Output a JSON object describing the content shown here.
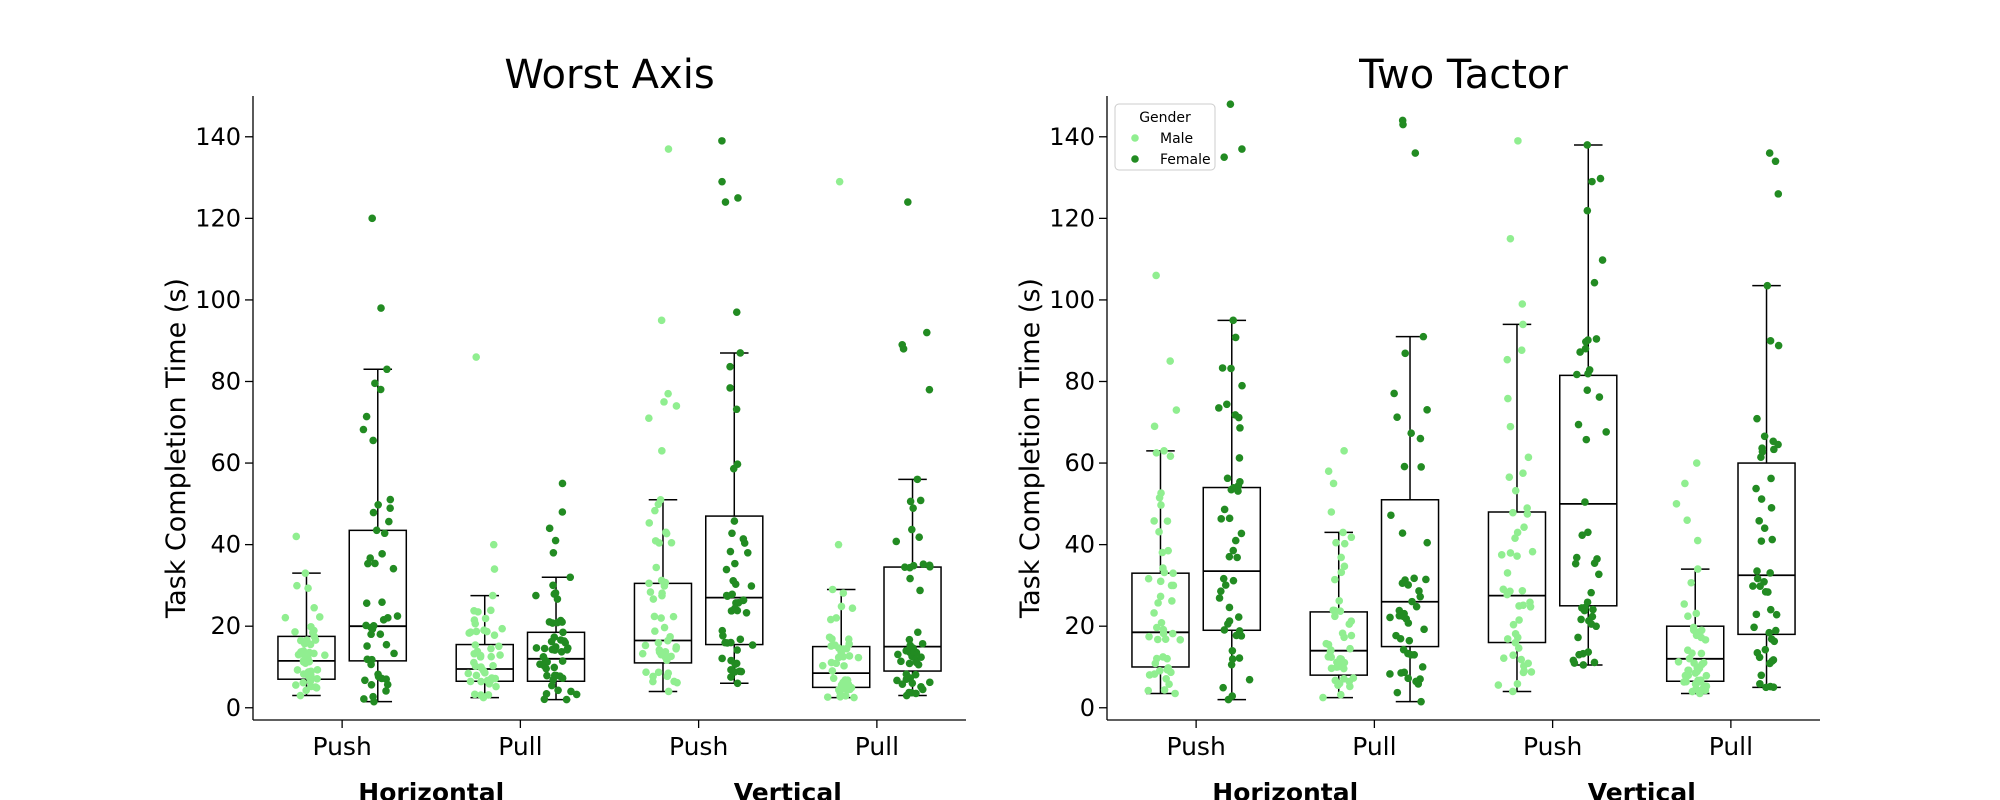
{
  "colors": {
    "male": "#90ee90",
    "female": "#228b22",
    "box": "#000000"
  },
  "chart_data": [
    {
      "type": "box",
      "title": "Worst Axis",
      "ylabel": "Task Completion Time (s)",
      "ylim": [
        -3,
        150
      ],
      "yticks": [
        0,
        20,
        40,
        60,
        80,
        100,
        120,
        140
      ],
      "categories": [
        "Push",
        "Pull",
        "Push",
        "Pull"
      ],
      "groups": [
        {
          "label": "Horizontal",
          "categories": [
            0,
            1
          ]
        },
        {
          "label": "Vertical",
          "categories": [
            2,
            3
          ]
        }
      ],
      "legend": null,
      "series": [
        {
          "name": "Male",
          "boxes": [
            {
              "whisker_low": 3,
              "q1": 7,
              "median": 11.5,
              "q3": 17.5,
              "whisker_high": 33,
              "outliers": [
                42
              ]
            },
            {
              "whisker_low": 2.5,
              "q1": 6.5,
              "median": 9.5,
              "q3": 15.5,
              "whisker_high": 27.5,
              "outliers": [
                34,
                40,
                86
              ]
            },
            {
              "whisker_low": 4,
              "q1": 11,
              "median": 16.5,
              "q3": 30.5,
              "whisker_high": 51,
              "outliers": [
                63,
                71,
                74,
                75,
                77,
                95,
                137
              ]
            },
            {
              "whisker_low": 2.5,
              "q1": 5,
              "median": 8.5,
              "q3": 15,
              "whisker_high": 29,
              "outliers": [
                40,
                129
              ]
            }
          ]
        },
        {
          "name": "Female",
          "boxes": [
            {
              "whisker_low": 1.5,
              "q1": 11.5,
              "median": 20,
              "q3": 43.5,
              "whisker_high": 83,
              "outliers": [
                98,
                120
              ]
            },
            {
              "whisker_low": 2,
              "q1": 6.5,
              "median": 12,
              "q3": 18.5,
              "whisker_high": 32,
              "outliers": [
                38,
                41,
                44,
                48,
                55
              ]
            },
            {
              "whisker_low": 6,
              "q1": 15.5,
              "median": 27,
              "q3": 47,
              "whisker_high": 87,
              "outliers": [
                97,
                124,
                125,
                129,
                139
              ]
            },
            {
              "whisker_low": 3,
              "q1": 9,
              "median": 15,
              "q3": 34.5,
              "whisker_high": 56,
              "outliers": [
                78,
                88,
                89,
                92,
                124
              ]
            }
          ]
        }
      ]
    },
    {
      "type": "box",
      "title": "Two Tactor",
      "ylabel": "Task Completion Time (s)",
      "ylim": [
        -3,
        150
      ],
      "yticks": [
        0,
        20,
        40,
        60,
        80,
        100,
        120,
        140
      ],
      "categories": [
        "Push",
        "Pull",
        "Push",
        "Pull"
      ],
      "groups": [
        {
          "label": "Horizontal",
          "categories": [
            0,
            1
          ]
        },
        {
          "label": "Vertical",
          "categories": [
            2,
            3
          ]
        }
      ],
      "legend": {
        "title": "Gender",
        "entries": [
          "Male",
          "Female"
        ],
        "placement": "top-left"
      },
      "series": [
        {
          "name": "Male",
          "boxes": [
            {
              "whisker_low": 3.5,
              "q1": 10,
              "median": 18.5,
              "q3": 33,
              "whisker_high": 63,
              "outliers": [
                69,
                73,
                85,
                106
              ]
            },
            {
              "whisker_low": 2.5,
              "q1": 8,
              "median": 14,
              "q3": 23.5,
              "whisker_high": 43,
              "outliers": [
                48,
                55,
                58,
                63
              ]
            },
            {
              "whisker_low": 4,
              "q1": 16,
              "median": 27.5,
              "q3": 48,
              "whisker_high": 94,
              "outliers": [
                99,
                115,
                139
              ]
            },
            {
              "whisker_low": 3.5,
              "q1": 6.5,
              "median": 12,
              "q3": 20,
              "whisker_high": 34,
              "outliers": [
                41,
                46,
                50,
                55,
                60
              ]
            }
          ]
        },
        {
          "name": "Female",
          "boxes": [
            {
              "whisker_low": 2,
              "q1": 19,
              "median": 33.5,
              "q3": 54,
              "whisker_high": 95,
              "outliers": [
                135,
                137,
                148
              ]
            },
            {
              "whisker_low": 1.5,
              "q1": 15,
              "median": 26,
              "q3": 51,
              "whisker_high": 91,
              "outliers": [
                136,
                143,
                144
              ]
            },
            {
              "whisker_low": 10.5,
              "q1": 25,
              "median": 50,
              "q3": 81.5,
              "whisker_high": 138,
              "outliers": []
            },
            {
              "whisker_low": 5,
              "q1": 18,
              "median": 32.5,
              "q3": 60,
              "whisker_high": 103.5,
              "outliers": [
                126,
                134,
                136
              ]
            }
          ]
        }
      ]
    }
  ]
}
